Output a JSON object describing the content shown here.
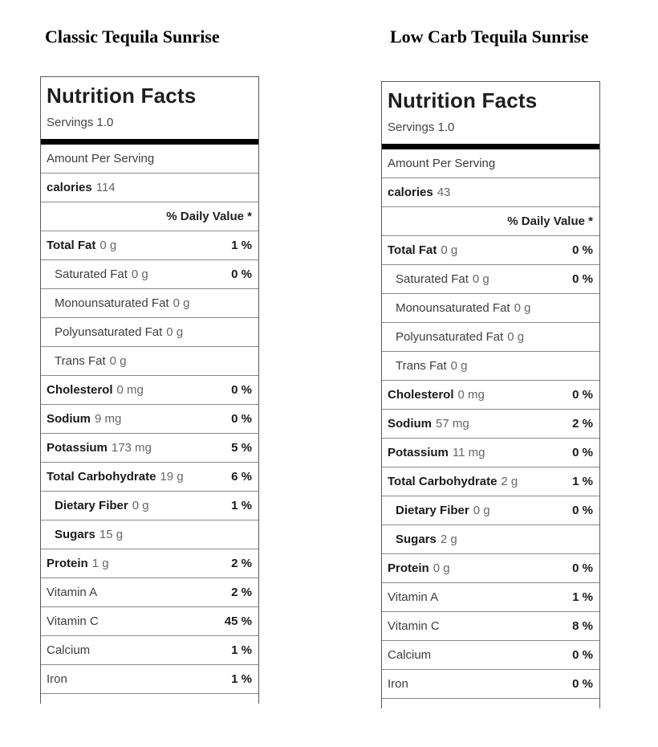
{
  "columns": [
    {
      "title": "Classic Tequila Sunrise",
      "label": {
        "header": "Nutrition Facts",
        "servings": "Servings 1.0",
        "amount_per_serving": "Amount Per Serving",
        "calories": {
          "label": "calories",
          "value": "114"
        },
        "daily_value_header": "% Daily Value *",
        "rows": [
          {
            "name": "Total Fat",
            "amount": "0 g",
            "dv": "1 %",
            "bold": true,
            "indent": false
          },
          {
            "name": "Saturated Fat",
            "amount": "0 g",
            "dv": "0 %",
            "bold": false,
            "indent": true
          },
          {
            "name": "Monounsaturated Fat",
            "amount": "0 g",
            "dv": "",
            "bold": false,
            "indent": true
          },
          {
            "name": "Polyunsaturated Fat",
            "amount": "0 g",
            "dv": "",
            "bold": false,
            "indent": true
          },
          {
            "name": "Trans Fat",
            "amount": "0 g",
            "dv": "",
            "bold": false,
            "indent": true
          },
          {
            "name": "Cholesterol",
            "amount": "0 mg",
            "dv": "0 %",
            "bold": true,
            "indent": false
          },
          {
            "name": "Sodium",
            "amount": "9 mg",
            "dv": "0 %",
            "bold": true,
            "indent": false
          },
          {
            "name": "Potassium",
            "amount": "173 mg",
            "dv": "5 %",
            "bold": true,
            "indent": false
          },
          {
            "name": "Total Carbohydrate",
            "amount": "19 g",
            "dv": "6 %",
            "bold": true,
            "indent": false
          },
          {
            "name": "Dietary Fiber",
            "amount": "0 g",
            "dv": "1 %",
            "bold": true,
            "indent": true
          },
          {
            "name": "Sugars",
            "amount": "15 g",
            "dv": "",
            "bold": true,
            "indent": true
          },
          {
            "name": "Protein",
            "amount": "1 g",
            "dv": "2 %",
            "bold": true,
            "indent": false
          },
          {
            "name": "Vitamin A",
            "amount": "",
            "dv": "2 %",
            "bold": false,
            "indent": false
          },
          {
            "name": "Vitamin C",
            "amount": "",
            "dv": "45 %",
            "bold": false,
            "indent": false
          },
          {
            "name": "Calcium",
            "amount": "",
            "dv": "1 %",
            "bold": false,
            "indent": false
          },
          {
            "name": "Iron",
            "amount": "",
            "dv": "1 %",
            "bold": false,
            "indent": false
          }
        ]
      }
    },
    {
      "title": "Low Carb Tequila Sunrise",
      "label": {
        "header": "Nutrition Facts",
        "servings": "Servings 1.0",
        "amount_per_serving": "Amount Per Serving",
        "calories": {
          "label": "calories",
          "value": "43"
        },
        "daily_value_header": "% Daily Value *",
        "rows": [
          {
            "name": "Total Fat",
            "amount": "0 g",
            "dv": "0 %",
            "bold": true,
            "indent": false
          },
          {
            "name": "Saturated Fat",
            "amount": "0 g",
            "dv": "0 %",
            "bold": false,
            "indent": true
          },
          {
            "name": "Monounsaturated Fat",
            "amount": "0 g",
            "dv": "",
            "bold": false,
            "indent": true
          },
          {
            "name": "Polyunsaturated Fat",
            "amount": "0 g",
            "dv": "",
            "bold": false,
            "indent": true
          },
          {
            "name": "Trans Fat",
            "amount": "0 g",
            "dv": "",
            "bold": false,
            "indent": true
          },
          {
            "name": "Cholesterol",
            "amount": "0 mg",
            "dv": "0 %",
            "bold": true,
            "indent": false
          },
          {
            "name": "Sodium",
            "amount": "57 mg",
            "dv": "2 %",
            "bold": true,
            "indent": false
          },
          {
            "name": "Potassium",
            "amount": "11 mg",
            "dv": "0 %",
            "bold": true,
            "indent": false
          },
          {
            "name": "Total Carbohydrate",
            "amount": "2 g",
            "dv": "1 %",
            "bold": true,
            "indent": false
          },
          {
            "name": "Dietary Fiber",
            "amount": "0 g",
            "dv": "0 %",
            "bold": true,
            "indent": true
          },
          {
            "name": "Sugars",
            "amount": "2 g",
            "dv": "",
            "bold": true,
            "indent": true
          },
          {
            "name": "Protein",
            "amount": "0 g",
            "dv": "0 %",
            "bold": true,
            "indent": false
          },
          {
            "name": "Vitamin A",
            "amount": "",
            "dv": "1 %",
            "bold": false,
            "indent": false
          },
          {
            "name": "Vitamin C",
            "amount": "",
            "dv": "8 %",
            "bold": false,
            "indent": false
          },
          {
            "name": "Calcium",
            "amount": "",
            "dv": "0 %",
            "bold": false,
            "indent": false
          },
          {
            "name": "Iron",
            "amount": "",
            "dv": "0 %",
            "bold": false,
            "indent": false
          }
        ]
      }
    }
  ]
}
